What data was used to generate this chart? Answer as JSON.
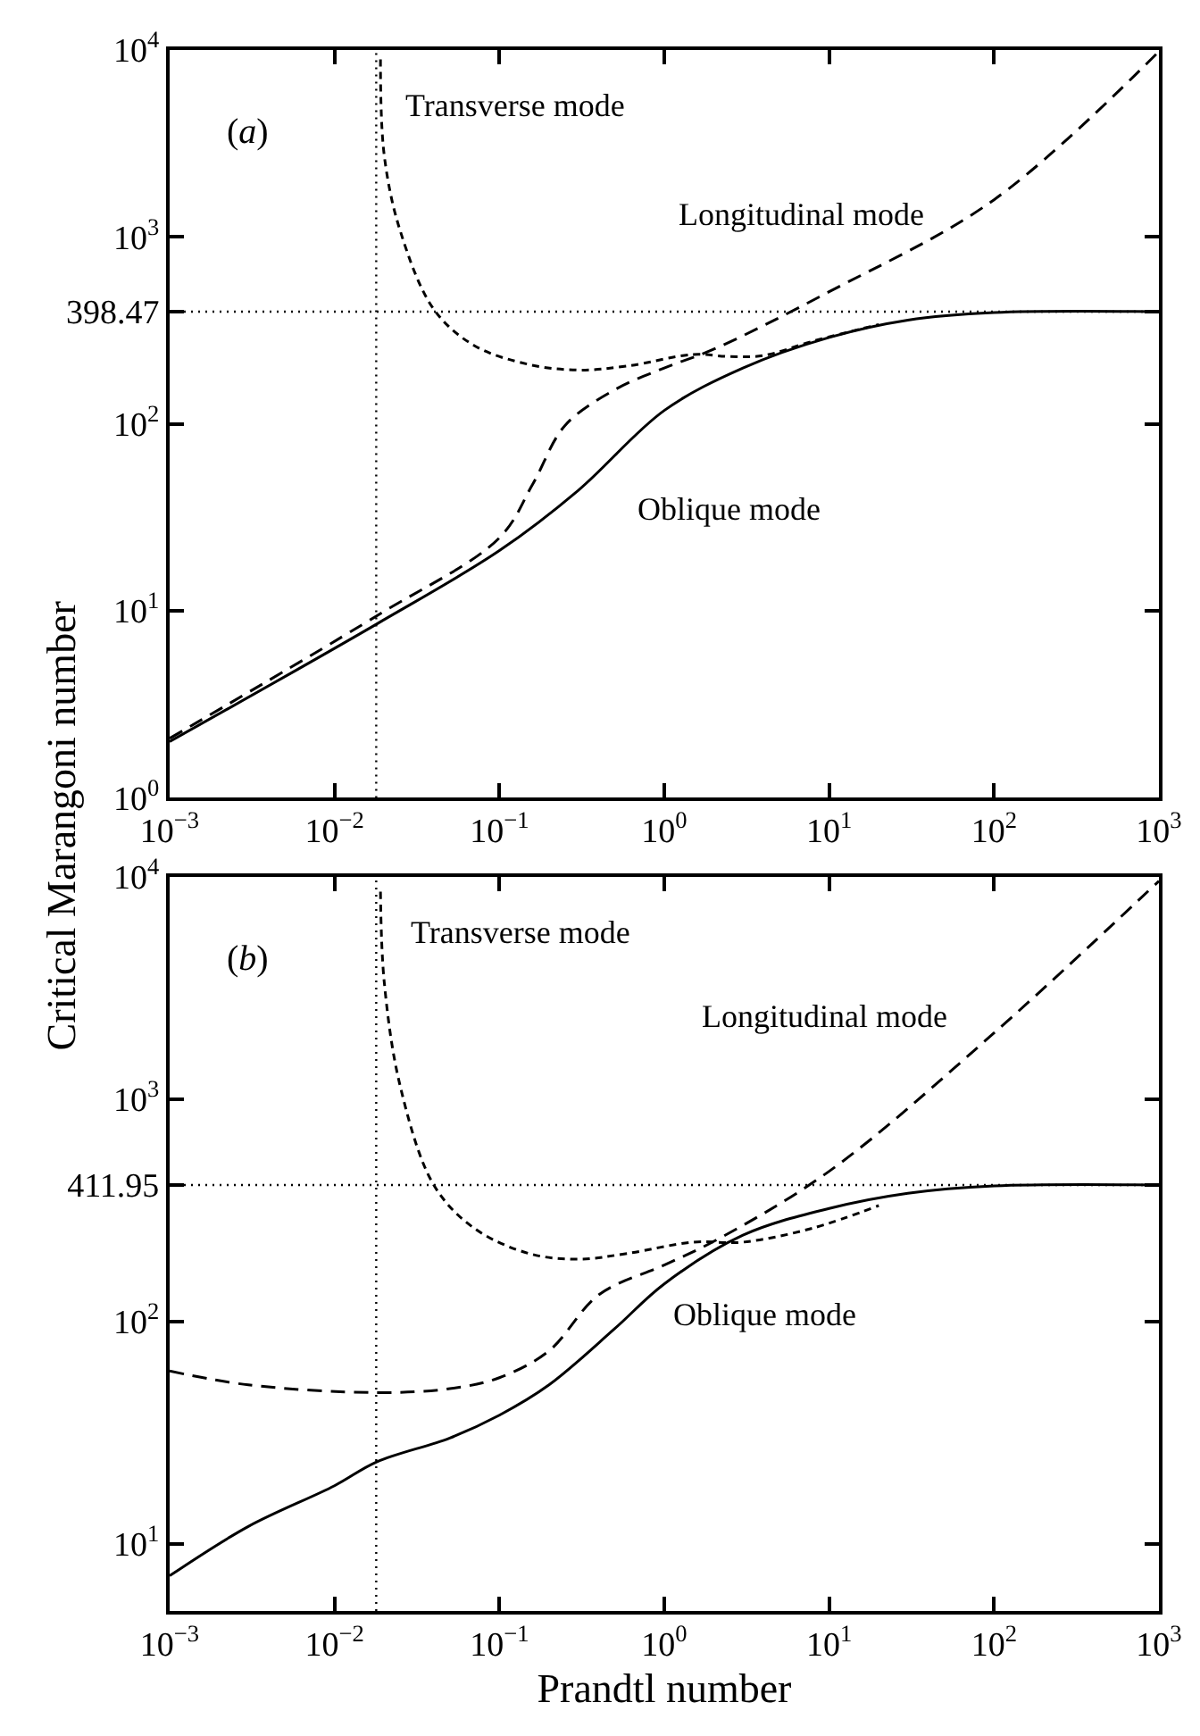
{
  "chart_data": [
    {
      "type": "line",
      "log": "xy",
      "ylabel": "Critical Marangoni number",
      "xlim": [
        0.001,
        1000
      ],
      "ylim": [
        1,
        10000
      ],
      "xticks": [
        {
          "value": 0.001,
          "label": "10$^{−3}$"
        },
        {
          "value": 0.01,
          "label": "10$^{−2}$"
        },
        {
          "value": 0.1,
          "label": "10$^{−1}$"
        },
        {
          "value": 1,
          "label": "10$^{0}$"
        },
        {
          "value": 10,
          "label": "10$^{1}$"
        },
        {
          "value": 100,
          "label": "10$^{2}$"
        },
        {
          "value": 1000,
          "label": "10$^{3}$"
        }
      ],
      "yticks": [
        {
          "value": 1,
          "label": "10$^{0}$"
        },
        {
          "value": 10,
          "label": "10$^{1}$"
        },
        {
          "value": 100,
          "label": "10$^{2}$"
        },
        398.47,
        {
          "value": 1000,
          "label": "10$^{3}$"
        },
        {
          "value": 10000,
          "label": "10$^{4}$"
        }
      ],
      "series": [
        {
          "color": "#000000",
          "line_style": "solid",
          "x": [
            0.001,
            0.018,
            0.1,
            0.3,
            1,
            3,
            10,
            30,
            100,
            1000
          ],
          "values": [
            2.0,
            8.5,
            21,
            44,
            118,
            199,
            290,
            359,
            394,
            398
          ]
        },
        {
          "color": "#000000",
          "line_style": "dashed",
          "x": [
            0.001,
            0.018,
            0.1,
            0.16,
            0.25,
            0.5,
            1,
            2,
            10,
            100,
            1000
          ],
          "values": [
            2.08,
            9.4,
            24.6,
            48,
            98,
            152,
            199,
            251,
            509,
            1580,
            9800
          ]
        },
        {
          "color": "#000000",
          "line_style": "dotted",
          "x": [
            0.019,
            0.02,
            0.025,
            0.04,
            0.07,
            0.15,
            0.3,
            0.6,
            1.5,
            2.5,
            4,
            8,
            20
          ],
          "values": [
            8900,
            2750,
            1080,
            410,
            263,
            208,
            194,
            204,
            235,
            229,
            232,
            277,
            340
          ]
        }
      ],
      "ref_lines": [
        {
          "axis": "x",
          "value": 0.0179,
          "color": "#000000",
          "line_style": "dotted"
        },
        {
          "axis": "y",
          "value": 398.47,
          "color": "#000000",
          "line_style": "dotted"
        }
      ],
      "annotations": [
        "(a)",
        "Transverse mode",
        "Longitudinal mode",
        "Oblique mode"
      ]
    },
    {
      "type": "line",
      "log": "xy",
      "xlabel": "Prandtl number",
      "xlim": [
        0.001,
        1000
      ],
      "ylim": [
        5,
        10000
      ],
      "xticks": [
        {
          "value": 0.001,
          "label": "10$^{−3}$"
        },
        {
          "value": 0.01,
          "label": "10$^{−2}$"
        },
        {
          "value": 0.1,
          "label": "10$^{−1}$"
        },
        {
          "value": 1,
          "label": "10$^{0}$"
        },
        {
          "value": 10,
          "label": "10$^{1}$"
        },
        {
          "value": 100,
          "label": "10$^{2}$"
        },
        {
          "value": 1000,
          "label": "10$^{3}$"
        }
      ],
      "yticks": [
        {
          "value": 10,
          "label": "10$^{1}$"
        },
        {
          "value": 100,
          "label": "10$^{2}$"
        },
        411.95,
        {
          "value": 1000,
          "label": "10$^{3}$"
        },
        {
          "value": 10000,
          "label": "10$^{4}$"
        }
      ],
      "series": [
        {
          "color": "#000000",
          "line_style": "solid",
          "x": [
            0.001,
            0.003,
            0.01,
            0.018,
            0.05,
            0.1,
            0.2,
            0.5,
            1,
            3,
            10,
            30,
            100,
            1000
          ],
          "values": [
            7.2,
            12,
            18.3,
            23.4,
            30,
            38,
            52,
            93,
            148,
            245,
            323,
            378,
            408,
            412
          ]
        },
        {
          "color": "#000000",
          "line_style": "dashed",
          "x": [
            0.001,
            0.003,
            0.018,
            0.05,
            0.1,
            0.2,
            0.4,
            1,
            2,
            10,
            100,
            1000
          ],
          "values": [
            60,
            52,
            48,
            50,
            56,
            74,
            132,
            180,
            230,
            475,
            1990,
            9600
          ]
        },
        {
          "color": "#000000",
          "line_style": "dotted",
          "x": [
            0.019,
            0.02,
            0.025,
            0.04,
            0.07,
            0.15,
            0.3,
            0.6,
            1.5,
            3,
            8,
            20
          ],
          "values": [
            8600,
            3400,
            1150,
            412,
            264,
            203,
            191,
            203,
            228,
            228,
            264,
            333
          ]
        }
      ],
      "ref_lines": [
        {
          "axis": "x",
          "value": 0.0179,
          "color": "#000000",
          "line_style": "dotted"
        },
        {
          "axis": "y",
          "value": 411.95,
          "color": "#000000",
          "line_style": "dotted"
        }
      ],
      "annotations": [
        "(b)",
        "Transverse mode",
        "Longitudinal mode",
        "Oblique mode"
      ]
    }
  ]
}
